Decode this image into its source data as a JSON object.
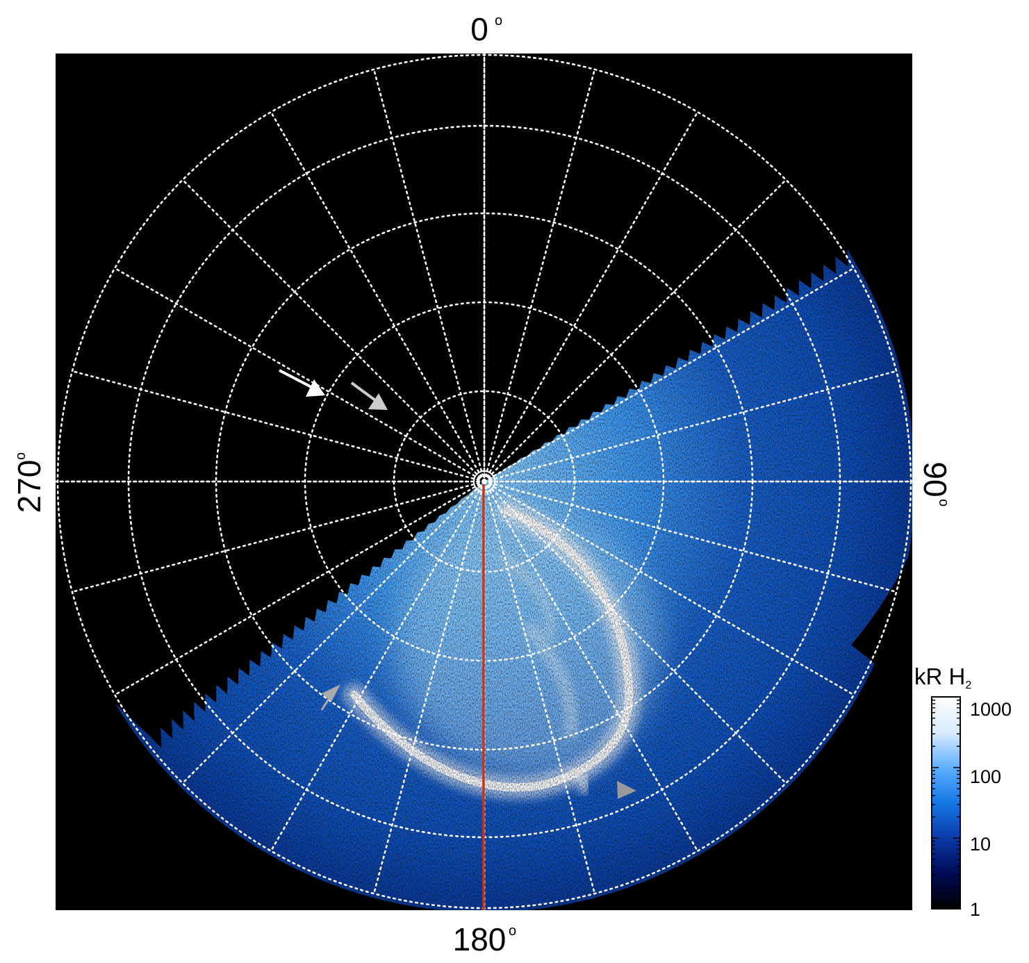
{
  "figure": {
    "type": "polar auroral projection",
    "background_color": "#000000",
    "grid_color": "#ffffff",
    "grid_style": "dotted",
    "meridian_marker_color": "#cc3311",
    "longitude_labels": {
      "top": "0",
      "right": "90",
      "bottom": "180",
      "left": "270"
    },
    "degree_symbol": "o",
    "annotations": [
      {
        "type": "arrow",
        "color": "#ffffff",
        "name": "white-arrow"
      },
      {
        "type": "arrow",
        "color": "#cccccc",
        "name": "gray-arrow-upper"
      },
      {
        "type": "arrowhead",
        "color": "#aaaaaa",
        "name": "gray-arrowhead-left"
      },
      {
        "type": "arrowhead",
        "color": "#999999",
        "name": "gray-arrowhead-right"
      }
    ]
  },
  "colorbar": {
    "title": "kR H",
    "title_subscript": "2",
    "scale": "log",
    "range": [
      1,
      1000
    ],
    "ticks": [
      "1000",
      "100",
      "10",
      "1"
    ],
    "colors": [
      "#000000",
      "#000a55",
      "#0a3aa8",
      "#1477e6",
      "#5fb0ff",
      "#d8ecff",
      "#ffffff"
    ]
  }
}
